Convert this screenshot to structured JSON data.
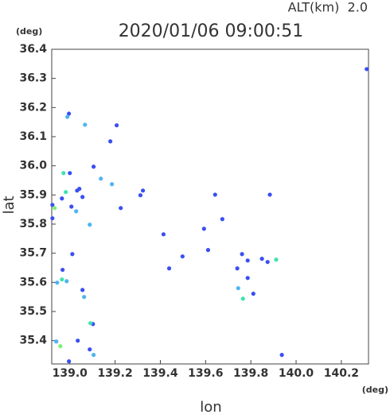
{
  "chart_data": {
    "type": "scatter",
    "title": "2020/01/06 09:00:51",
    "subtitle": "ALT(km)  2.0",
    "y_unit": "(deg)",
    "x_unit": "(deg)",
    "x_label": "lon",
    "y_label": "lat",
    "xlim": [
      138.92,
      140.32
    ],
    "ylim": [
      35.32,
      36.4
    ],
    "xticks": [
      {
        "value": 139,
        "label": "139.0"
      },
      139.2,
      139.4,
      139.6,
      139.8,
      {
        "value": 140,
        "label": "140.0"
      },
      140.2
    ],
    "yticks": [
      36.4,
      36.3,
      36.2,
      36.1,
      {
        "value": 36,
        "label": "36.0"
      },
      35.9,
      35.8,
      35.7,
      35.6,
      35.5,
      35.4
    ],
    "grid": false,
    "series": [
      {
        "name": "blue",
        "color": "#3a4ff0",
        "x": [
          138.996,
          139.179,
          139.207,
          139.105,
          139.0,
          139.042,
          139.032,
          138.965,
          139.007,
          139.056,
          139.323,
          139.312,
          139.225,
          139.414,
          139.593,
          139.674,
          139.642,
          139.498,
          139.439,
          139.74,
          139.786,
          139.849,
          139.874,
          139.786,
          139.811,
          139.011,
          138.968,
          139.056,
          139.937,
          138.996,
          139.088,
          138.923,
          138.923,
          139.884,
          140.312,
          139.102,
          139.761,
          139.611,
          139.035
        ],
        "values": [
          36.179,
          36.084,
          36.139,
          35.997,
          35.975,
          35.921,
          35.915,
          35.888,
          35.86,
          35.893,
          35.915,
          35.899,
          35.855,
          35.765,
          35.784,
          35.817,
          35.901,
          35.689,
          35.648,
          35.648,
          35.675,
          35.681,
          35.67,
          35.615,
          35.561,
          35.697,
          35.643,
          35.574,
          35.351,
          35.329,
          35.37,
          35.866,
          35.82,
          35.901,
          36.332,
          35.457,
          35.697,
          35.711,
          35.4
        ]
      },
      {
        "name": "light-blue",
        "color": "#4fb4f2",
        "x": [
          138.989,
          139.067,
          139.137,
          139.186,
          139.088,
          139.028,
          138.986,
          139.063,
          139.744,
          138.94,
          138.944,
          139.105
        ],
        "values": [
          36.168,
          36.141,
          35.956,
          35.937,
          35.798,
          35.844,
          35.604,
          35.55,
          35.58,
          35.397,
          35.599,
          35.351
        ]
      },
      {
        "name": "teal",
        "color": "#3fe2b0",
        "x": [
          138.972,
          138.982,
          138.965,
          139.091,
          139.765,
          139.912
        ],
        "values": [
          35.975,
          35.91,
          35.61,
          35.46,
          35.544,
          35.678
        ]
      },
      {
        "name": "green",
        "color": "#7ef07a",
        "x": [
          138.933,
          138.958
        ],
        "values": [
          35.855,
          35.381
        ]
      }
    ]
  }
}
